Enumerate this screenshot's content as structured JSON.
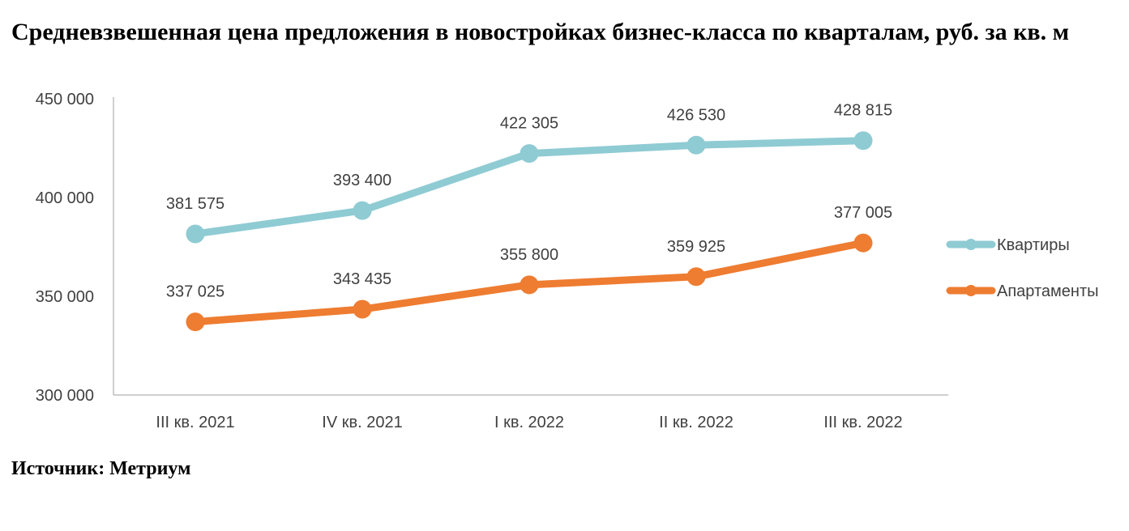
{
  "title": "Средневзвешенная цена предложения в новостройках бизнес-класса по кварталам, руб. за кв. м",
  "source": "Источник: Метриум",
  "chart_data": {
    "type": "line",
    "title": "Средневзвешенная цена предложения в новостройках бизнес-класса по кварталам, руб. за кв. м",
    "xlabel": "",
    "ylabel": "",
    "categories": [
      "III кв. 2021",
      "IV кв. 2021",
      "I кв. 2022",
      "II кв. 2022",
      "III кв. 2022"
    ],
    "ylim": [
      300000,
      450000
    ],
    "yticks": [
      300000,
      350000,
      400000,
      450000
    ],
    "ytick_labels": [
      "300 000",
      "350 000",
      "400 000",
      "450 000"
    ],
    "grid": false,
    "legend_position": "right",
    "series": [
      {
        "name": "Квартиры",
        "color": "#8FCBD3",
        "values": [
          381575,
          393400,
          422305,
          426530,
          428815
        ],
        "labels": [
          "381 575",
          "393 400",
          "422 305",
          "426 530",
          "428 815"
        ]
      },
      {
        "name": "Апартаменты",
        "color": "#EE7C31",
        "values": [
          337025,
          343435,
          355800,
          359925,
          377005
        ],
        "labels": [
          "337 025",
          "343 435",
          "355 800",
          "359 925",
          "377 005"
        ]
      }
    ]
  }
}
